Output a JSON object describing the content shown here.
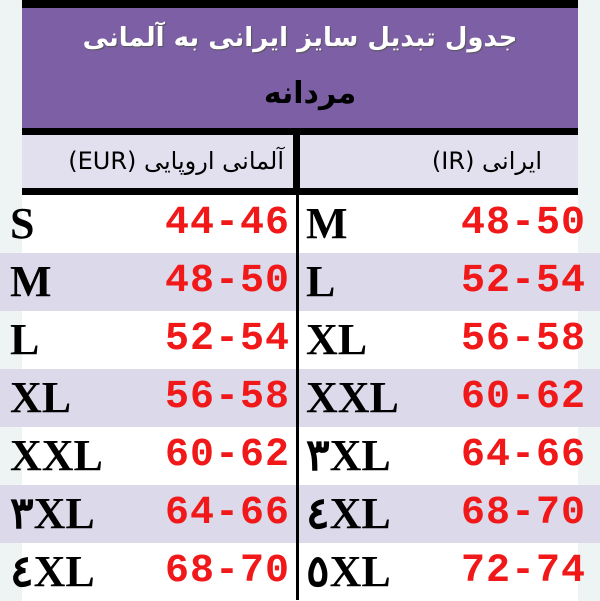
{
  "title": "جدول تبدیل سایز ایرانی به آلمانی",
  "subtitle": "مردانه",
  "headers": {
    "eur": "آلمانی اروپایی (EUR)",
    "ir": "ایرانی (IR)"
  },
  "rows": [
    {
      "eur_size": "S",
      "eur_range": "44-46",
      "ir_size": "M",
      "ir_range": "48-50"
    },
    {
      "eur_size": "M",
      "eur_range": "48-50",
      "ir_size": "L",
      "ir_range": "52-54"
    },
    {
      "eur_size": "L",
      "eur_range": "52-54",
      "ir_size": "XL",
      "ir_range": "56-58"
    },
    {
      "eur_size": "XL",
      "eur_range": "56-58",
      "ir_size": "XXL",
      "ir_range": "60-62"
    },
    {
      "eur_size": "XXL",
      "eur_range": "60-62",
      "ir_size": "٣XL",
      "ir_range": "64-66"
    },
    {
      "eur_size": "٣XL",
      "eur_range": "64-66",
      "ir_size": "٤XL",
      "ir_range": "68-70"
    },
    {
      "eur_size": "٤XL",
      "eur_range": "68-70",
      "ir_size": "٥XL",
      "ir_range": "72-74"
    }
  ],
  "colors": {
    "banner": "#7d5fa6",
    "range_text": "#f01818",
    "stripe": "#dcdaea"
  }
}
